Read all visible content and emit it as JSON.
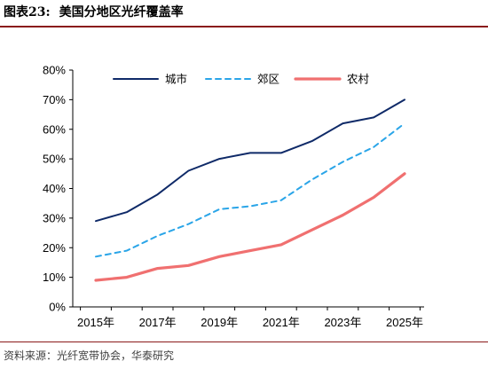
{
  "header": {
    "figure_number": "图表23:",
    "title": "美国分地区光纤覆盖率"
  },
  "source": "资料来源：光纤宽带协会，华泰研究",
  "colors": {
    "urban": "#0f2a68",
    "suburban": "#2aa5e8",
    "rural": "#f07070",
    "accent_rule": "#8a1a1a"
  },
  "chart_data": {
    "type": "line",
    "x": [
      2015,
      2016,
      2017,
      2018,
      2019,
      2020,
      2021,
      2022,
      2023,
      2024,
      2025
    ],
    "x_tick_labels": [
      "2015年",
      "2017年",
      "2019年",
      "2021年",
      "2023年",
      "2025年"
    ],
    "y_tick_labels": [
      "0%",
      "10%",
      "20%",
      "30%",
      "40%",
      "50%",
      "60%",
      "70%",
      "80%"
    ],
    "ylim": [
      0,
      80
    ],
    "y_unit": "%",
    "grid": false,
    "legend_position": "top",
    "series": [
      {
        "name": "城市",
        "style": "solid",
        "color": "#0f2a68",
        "values": [
          29,
          32,
          38,
          46,
          50,
          52,
          52,
          56,
          62,
          64,
          70
        ]
      },
      {
        "name": "郊区",
        "style": "dashed",
        "color": "#2aa5e8",
        "values": [
          17,
          19,
          24,
          28,
          33,
          34,
          36,
          43,
          49,
          54,
          62
        ]
      },
      {
        "name": "农村",
        "style": "solid-thick",
        "color": "#f07070",
        "values": [
          9,
          10,
          13,
          14,
          17,
          19,
          21,
          26,
          31,
          37,
          45
        ]
      }
    ]
  }
}
